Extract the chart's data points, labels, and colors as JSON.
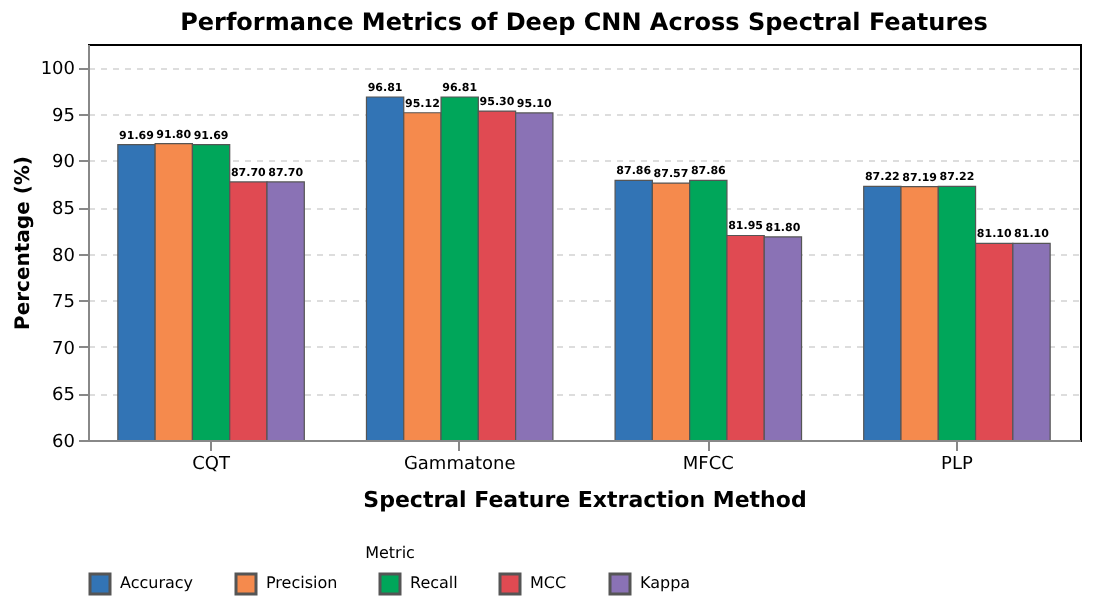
{
  "chart_data": {
    "type": "bar",
    "title": "Performance Metrics of Deep CNN Across Spectral Features",
    "xlabel": "Spectral Feature Extraction Method",
    "ylabel": "Percentage (%)",
    "legend_title": "Metric",
    "categories": [
      "CQT",
      "Gammatone",
      "MFCC",
      "PLP"
    ],
    "series": [
      {
        "name": "Accuracy",
        "color": "#3274b5",
        "values": [
          91.69,
          96.81,
          87.86,
          87.22
        ],
        "value_labels": [
          "91.69",
          "96.81",
          "87.86",
          "87.22"
        ]
      },
      {
        "name": "Precision",
        "color": "#f58a4d",
        "values": [
          91.8,
          95.12,
          87.57,
          87.19
        ],
        "value_labels": [
          "91.80",
          "95.12",
          "87.57",
          "87.19"
        ]
      },
      {
        "name": "Recall",
        "color": "#00a65a",
        "values": [
          91.69,
          96.81,
          87.86,
          87.22
        ],
        "value_labels": [
          "91.69",
          "96.81",
          "87.86",
          "87.22"
        ]
      },
      {
        "name": "MCC",
        "color": "#e04a52",
        "values": [
          87.7,
          95.3,
          81.95,
          81.1
        ],
        "value_labels": [
          "87.70",
          "95.30",
          "81.95",
          "81.10"
        ]
      },
      {
        "name": "Kappa",
        "color": "#8a72b5",
        "values": [
          87.7,
          95.1,
          81.8,
          81.1
        ],
        "value_labels": [
          "87.70",
          "95.10",
          "81.80",
          "81.10"
        ]
      }
    ],
    "ylim": [
      60,
      102.5
    ],
    "yticks": [
      60,
      65,
      70,
      75,
      80,
      85,
      90,
      95,
      100
    ],
    "grid": "y",
    "legend": "bottom"
  }
}
